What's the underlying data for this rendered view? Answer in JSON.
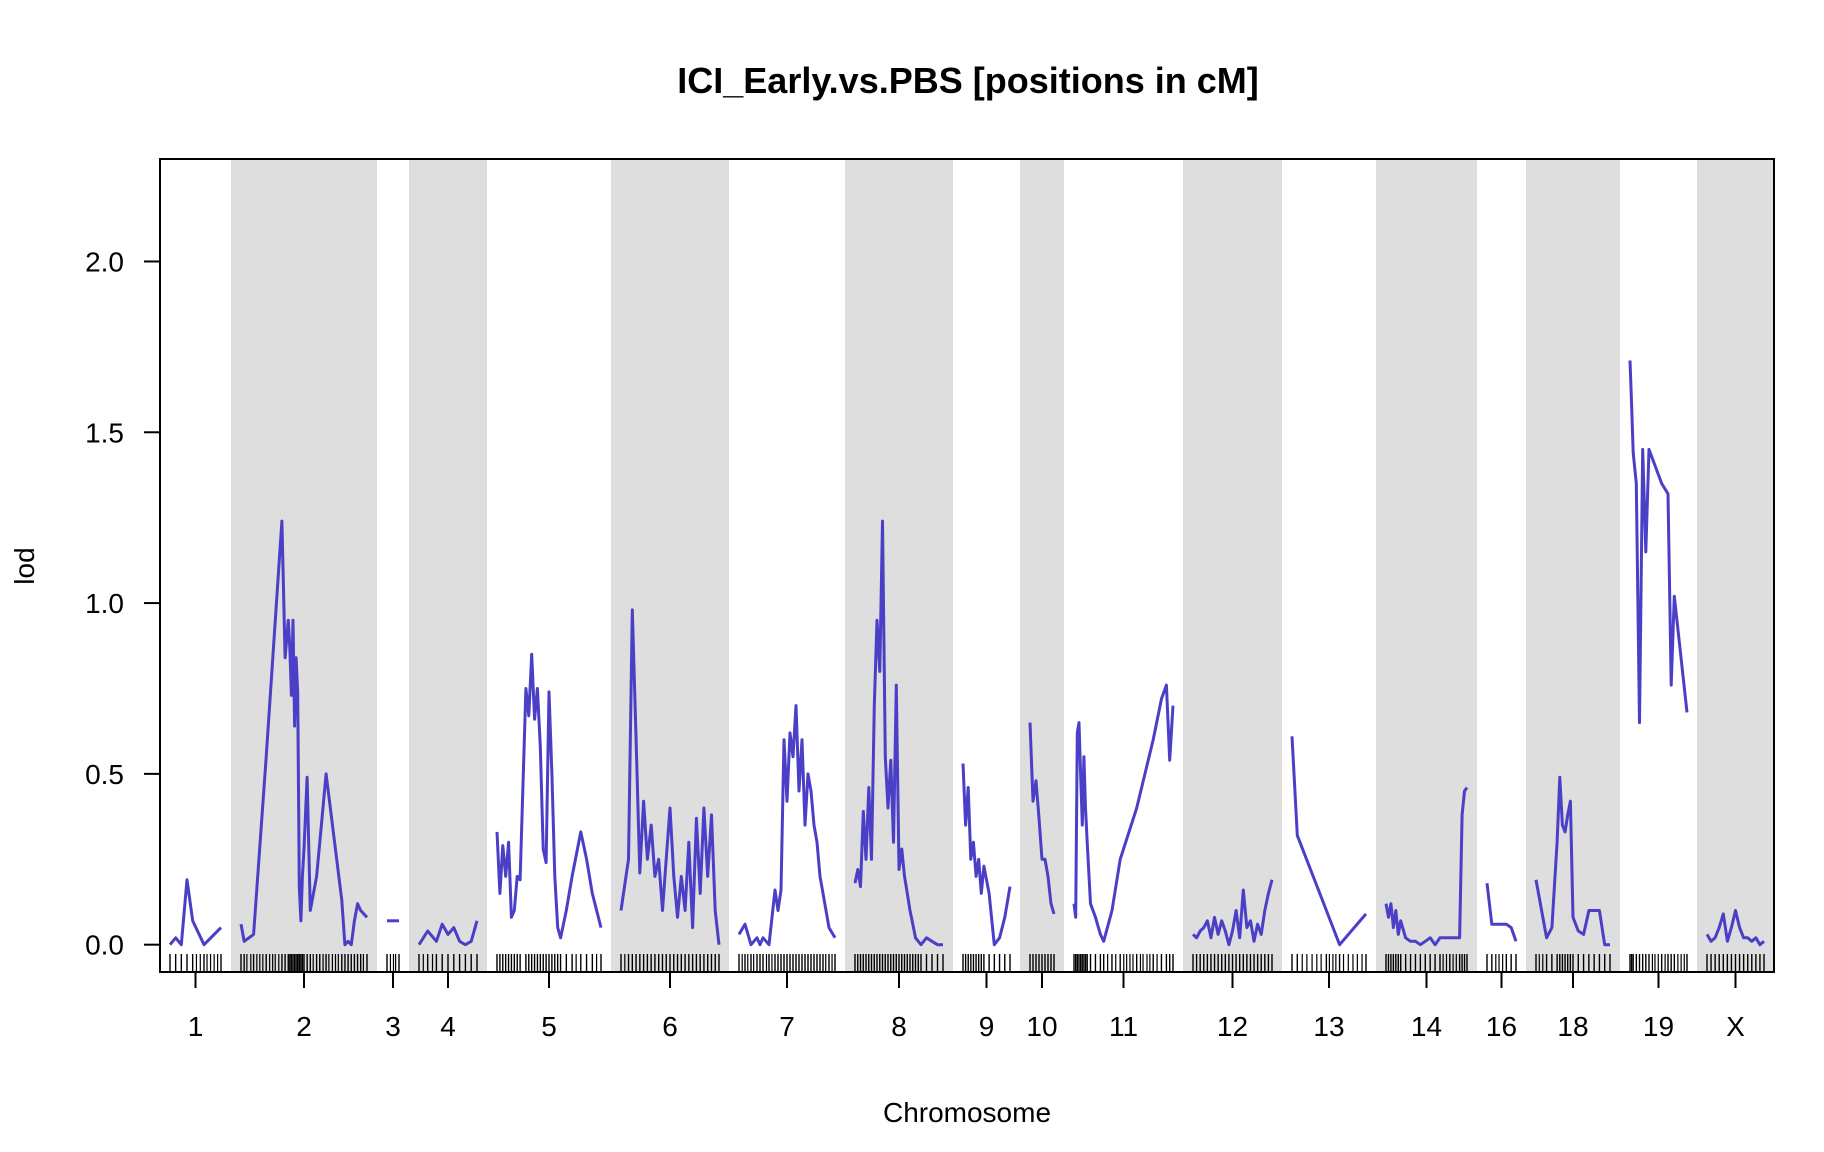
{
  "chart_data": {
    "type": "line",
    "title": "ICI_Early.vs.PBS [positions in cM]",
    "xlabel": "Chromosome",
    "ylabel": "lod",
    "ylim": [
      -0.08,
      2.3
    ],
    "y_ticks": [
      0.0,
      0.5,
      1.0,
      1.5,
      2.0
    ],
    "y_tick_labels": [
      "0.0",
      "0.5",
      "1.0",
      "1.5",
      "2.0"
    ],
    "grid": false,
    "alternating_chromosome_shading": true,
    "colors": {
      "line": "#4b3fc8",
      "shade": "#dedede",
      "marker_ticks": "#000000"
    },
    "chromosomes": [
      {
        "name": "1",
        "shaded": false,
        "x": [
          0,
          2,
          4,
          6,
          8,
          12,
          18
        ],
        "lod": [
          0.0,
          0.02,
          0.0,
          0.19,
          0.07,
          0.0,
          0.05
        ]
      },
      {
        "name": "2",
        "shaded": true,
        "x": [
          2,
          3,
          6,
          10,
          15,
          16,
          17,
          17.5,
          18,
          18.5,
          19,
          19.5,
          20,
          20.5,
          21,
          21.5,
          22,
          23,
          24,
          26,
          27,
          29,
          34,
          35,
          36,
          37,
          38,
          39,
          40,
          42
        ],
        "lod": [
          0.06,
          0.01,
          0.03,
          0.55,
          1.24,
          0.84,
          0.95,
          0.87,
          0.73,
          0.95,
          0.64,
          0.84,
          0.74,
          0.17,
          0.07,
          0.2,
          0.28,
          0.49,
          0.1,
          0.2,
          0.3,
          0.5,
          0.13,
          0.0,
          0.01,
          0.0,
          0.07,
          0.12,
          0.1,
          0.08
        ]
      },
      {
        "name": "3",
        "shaded": false,
        "x": [
          0,
          3
        ],
        "lod": [
          0.07,
          0.07
        ]
      },
      {
        "name": "4",
        "shaded": true,
        "x": [
          2,
          5,
          8,
          10,
          12,
          14,
          16,
          18,
          20,
          22
        ],
        "lod": [
          0.0,
          0.04,
          0.01,
          0.06,
          0.03,
          0.05,
          0.01,
          0.0,
          0.01,
          0.07
        ]
      },
      {
        "name": "5",
        "shaded": false,
        "x": [
          2,
          3,
          4,
          5,
          6,
          7,
          8,
          9,
          10,
          12,
          13,
          14,
          15,
          16,
          17,
          18,
          19,
          20,
          21,
          22,
          23,
          24,
          26,
          28,
          31,
          33,
          35,
          38
        ],
        "lod": [
          0.33,
          0.15,
          0.29,
          0.2,
          0.3,
          0.08,
          0.1,
          0.2,
          0.19,
          0.75,
          0.67,
          0.85,
          0.66,
          0.75,
          0.58,
          0.28,
          0.24,
          0.74,
          0.5,
          0.2,
          0.05,
          0.02,
          0.1,
          0.2,
          0.33,
          0.25,
          0.15,
          0.05
        ]
      },
      {
        "name": "6",
        "shaded": true,
        "x": [
          4,
          6,
          7,
          8,
          9,
          10,
          11,
          12,
          13,
          14,
          15,
          16,
          17,
          18,
          19,
          20,
          21,
          22,
          23,
          24,
          25,
          26,
          27,
          28,
          29,
          30
        ],
        "lod": [
          0.1,
          0.25,
          0.98,
          0.6,
          0.21,
          0.42,
          0.25,
          0.35,
          0.2,
          0.25,
          0.1,
          0.25,
          0.4,
          0.2,
          0.08,
          0.2,
          0.1,
          0.3,
          0.05,
          0.37,
          0.15,
          0.4,
          0.2,
          0.38,
          0.1,
          0.0
        ]
      },
      {
        "name": "7",
        "shaded": false,
        "x": [
          2,
          4,
          6,
          8,
          9,
          10,
          12,
          14,
          15,
          16,
          17,
          18,
          19,
          20,
          21,
          22,
          23,
          24,
          25,
          26,
          27,
          28,
          29,
          30,
          32,
          34
        ],
        "lod": [
          0.03,
          0.06,
          0.0,
          0.02,
          0.0,
          0.02,
          0.0,
          0.16,
          0.1,
          0.16,
          0.6,
          0.42,
          0.62,
          0.55,
          0.7,
          0.45,
          0.6,
          0.35,
          0.5,
          0.45,
          0.35,
          0.3,
          0.2,
          0.15,
          0.05,
          0.02
        ]
      },
      {
        "name": "8",
        "shaded": true,
        "x": [
          4,
          5,
          6,
          7,
          8,
          9,
          10,
          11,
          12,
          13,
          14,
          15,
          16,
          17,
          18,
          19,
          20,
          21,
          22,
          23,
          24,
          25,
          26,
          27,
          28,
          30,
          32,
          34,
          36
        ],
        "lod": [
          0.18,
          0.22,
          0.17,
          0.39,
          0.25,
          0.46,
          0.25,
          0.7,
          0.95,
          0.8,
          1.24,
          0.55,
          0.4,
          0.54,
          0.3,
          0.76,
          0.22,
          0.28,
          0.2,
          0.15,
          0.1,
          0.06,
          0.02,
          0.01,
          0.0,
          0.02,
          0.01,
          0.0,
          0.0
        ]
      },
      {
        "name": "9",
        "shaded": false,
        "x": [
          2,
          3,
          4,
          5,
          6,
          7,
          8,
          9,
          10,
          12,
          14,
          16,
          18,
          20
        ],
        "lod": [
          0.53,
          0.35,
          0.46,
          0.25,
          0.3,
          0.2,
          0.25,
          0.15,
          0.23,
          0.15,
          0.0,
          0.02,
          0.08,
          0.17
        ]
      },
      {
        "name": "10",
        "shaded": true,
        "x": [
          2,
          3,
          4,
          5,
          6,
          7,
          8,
          9,
          10
        ],
        "lod": [
          0.65,
          0.42,
          0.48,
          0.37,
          0.25,
          0.25,
          0.2,
          0.12,
          0.09
        ]
      },
      {
        "name": "11",
        "shaded": false,
        "x": [
          2,
          3,
          4,
          5,
          6,
          7,
          8,
          9,
          10,
          12,
          15,
          18,
          20,
          25,
          30,
          40,
          50,
          55,
          58,
          60,
          62
        ],
        "lod": [
          0.12,
          0.08,
          0.62,
          0.65,
          0.5,
          0.35,
          0.55,
          0.4,
          0.3,
          0.12,
          0.08,
          0.03,
          0.01,
          0.1,
          0.25,
          0.4,
          0.6,
          0.72,
          0.76,
          0.54,
          0.7
        ]
      },
      {
        "name": "12",
        "shaded": true,
        "x": [
          2,
          4,
          6,
          8,
          10,
          12,
          14,
          16,
          18,
          20,
          22,
          24,
          26,
          28,
          30,
          32,
          34,
          36,
          38,
          40,
          42,
          44,
          46
        ],
        "lod": [
          0.03,
          0.02,
          0.04,
          0.05,
          0.07,
          0.02,
          0.08,
          0.03,
          0.07,
          0.04,
          0.0,
          0.04,
          0.1,
          0.02,
          0.16,
          0.05,
          0.07,
          0.01,
          0.06,
          0.03,
          0.1,
          0.15,
          0.19
        ]
      },
      {
        "name": "13",
        "shaded": false,
        "x": [
          2,
          4,
          15,
          20,
          30
        ],
        "lod": [
          0.61,
          0.32,
          0.1,
          0.0,
          0.09
        ]
      },
      {
        "name": "14",
        "shaded": true,
        "x": [
          2,
          3,
          4,
          5,
          6,
          7,
          8,
          10,
          12,
          14,
          16,
          18,
          20,
          22,
          24,
          28,
          32,
          33,
          34,
          35
        ],
        "lod": [
          0.12,
          0.08,
          0.12,
          0.05,
          0.1,
          0.03,
          0.07,
          0.02,
          0.01,
          0.01,
          0.0,
          0.01,
          0.02,
          0.0,
          0.02,
          0.02,
          0.02,
          0.38,
          0.45,
          0.46
        ]
      },
      {
        "name": "16",
        "shaded": false,
        "x": [
          2,
          4,
          10,
          12,
          14
        ],
        "lod": [
          0.18,
          0.06,
          0.06,
          0.05,
          0.01
        ]
      },
      {
        "name": "18",
        "shaded": true,
        "x": [
          2,
          6,
          8,
          10,
          11,
          12,
          13,
          14,
          15,
          16,
          18,
          20,
          22,
          24,
          26,
          28,
          30
        ],
        "lod": [
          0.19,
          0.02,
          0.05,
          0.3,
          0.49,
          0.35,
          0.33,
          0.38,
          0.42,
          0.08,
          0.04,
          0.03,
          0.1,
          0.1,
          0.1,
          0.0,
          0.0
        ]
      },
      {
        "name": "19",
        "shaded": false,
        "x": [
          2,
          2.5,
          3,
          4,
          5,
          6,
          7,
          8,
          12,
          14,
          15,
          16,
          20
        ],
        "lod": [
          1.71,
          1.58,
          1.44,
          1.35,
          0.65,
          1.45,
          1.15,
          1.45,
          1.35,
          1.32,
          0.76,
          1.02,
          0.68
        ]
      },
      {
        "name": "X",
        "shaded": true,
        "x": [
          2,
          4,
          6,
          8,
          10,
          12,
          14,
          16,
          18,
          20,
          22,
          24,
          26,
          28,
          30
        ],
        "lod": [
          0.03,
          0.01,
          0.02,
          0.05,
          0.09,
          0.01,
          0.05,
          0.1,
          0.05,
          0.02,
          0.02,
          0.01,
          0.02,
          0.0,
          0.01
        ]
      }
    ]
  }
}
